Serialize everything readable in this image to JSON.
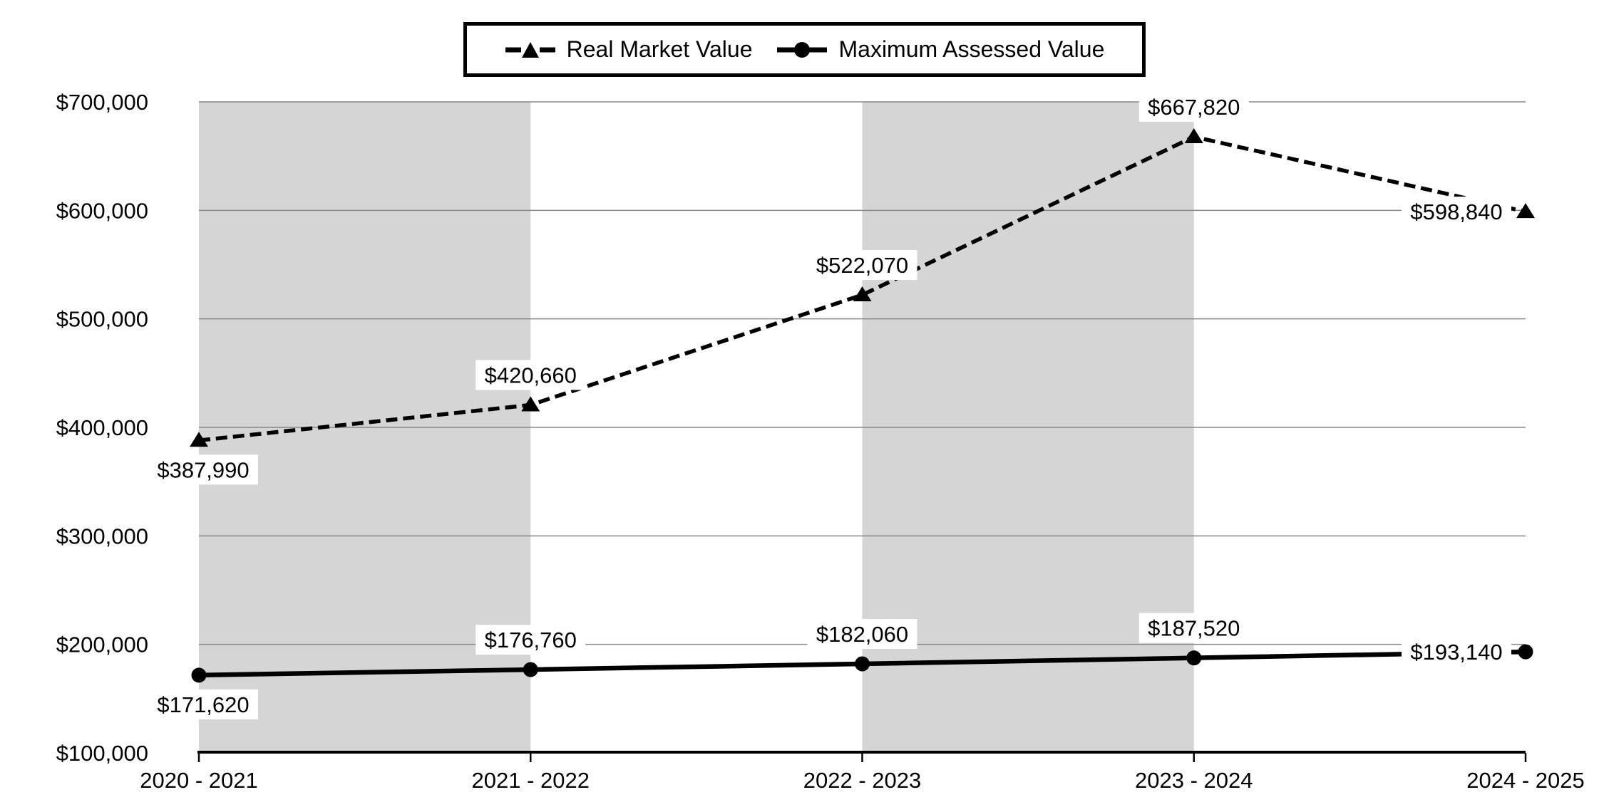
{
  "legend": {
    "items": [
      {
        "label": "Real Market Value",
        "marker": "dashed-line-triangle"
      },
      {
        "label": "Maximum Assessed Value",
        "marker": "solid-line-circle"
      }
    ]
  },
  "colors": {
    "line": "#000000",
    "grid": "#888888",
    "band": "#d5d5d5",
    "background": "#ffffff",
    "label_bg": "#ffffff",
    "text": "#000000"
  },
  "chart_data": {
    "type": "line",
    "title": "",
    "xlabel": "",
    "ylabel": "",
    "categories": [
      "2020 - 2021",
      "2021 - 2022",
      "2022 - 2023",
      "2023 - 2024",
      "2024 - 2025"
    ],
    "y_ticks": [
      "$700,000",
      "$600,000",
      "$500,000",
      "$400,000",
      "$300,000",
      "$200,000",
      "$100,000"
    ],
    "ylim": [
      100000,
      700000
    ],
    "y_tick_step": 100000,
    "grid": true,
    "legend_position": "top-center",
    "plot_bands": {
      "intervals": [
        [
          0,
          1
        ],
        [
          2,
          3
        ]
      ]
    },
    "series": [
      {
        "name": "Real Market Value",
        "line_style": "dashed",
        "marker": "triangle",
        "values": [
          387990,
          420660,
          522070,
          667820,
          598840
        ],
        "labels": [
          "$387,990",
          "$420,660",
          "$522,070",
          "$667,820",
          "$598,840"
        ],
        "label_placement": [
          "below",
          "above",
          "above",
          "above",
          "left"
        ]
      },
      {
        "name": "Maximum Assessed Value",
        "line_style": "solid",
        "marker": "circle",
        "values": [
          171620,
          176760,
          182060,
          187520,
          193140
        ],
        "labels": [
          "$171,620",
          "$176,760",
          "$182,060",
          "$187,520",
          "$193,140"
        ],
        "label_placement": [
          "below",
          "above",
          "above",
          "above",
          "left"
        ]
      }
    ]
  }
}
